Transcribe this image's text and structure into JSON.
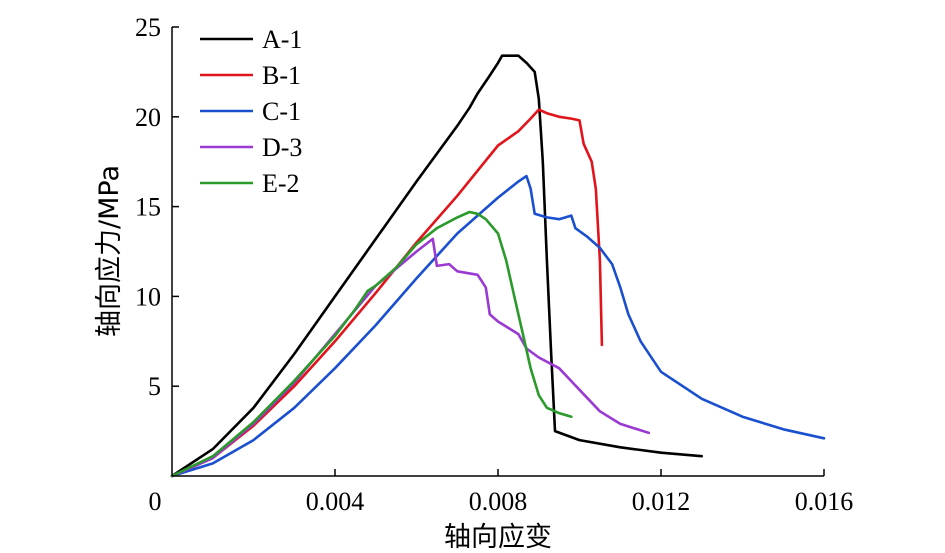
{
  "chart_data": {
    "type": "line",
    "title": "",
    "xlabel": "轴向应变",
    "ylabel": "轴向应力/MPa",
    "xlim": [
      0,
      0.016
    ],
    "ylim": [
      0,
      25
    ],
    "xticks": [
      {
        "value": 0,
        "label": "0"
      },
      {
        "value": 0.004,
        "label": "0.004"
      },
      {
        "value": 0.008,
        "label": "0.008"
      },
      {
        "value": 0.012,
        "label": "0.012"
      },
      {
        "value": 0.016,
        "label": "0.016"
      }
    ],
    "yticks": [
      {
        "value": 5,
        "label": "5"
      },
      {
        "value": 10,
        "label": "10"
      },
      {
        "value": 15,
        "label": "15"
      },
      {
        "value": 20,
        "label": "20"
      },
      {
        "value": 25,
        "label": "25"
      }
    ],
    "grid": false,
    "legend_position": "top-left",
    "series": [
      {
        "name": "A-1",
        "color": "#000000",
        "points": [
          [
            0,
            0
          ],
          [
            0.001,
            1.5
          ],
          [
            0.002,
            3.8
          ],
          [
            0.003,
            6.8
          ],
          [
            0.004,
            10
          ],
          [
            0.005,
            13.2
          ],
          [
            0.006,
            16.4
          ],
          [
            0.007,
            19.5
          ],
          [
            0.0073,
            20.5
          ],
          [
            0.0075,
            21.3
          ],
          [
            0.0078,
            22.3
          ],
          [
            0.008,
            23.0
          ],
          [
            0.0081,
            23.4
          ],
          [
            0.0083,
            23.4
          ],
          [
            0.0085,
            23.4
          ],
          [
            0.0087,
            23.0
          ],
          [
            0.0089,
            22.5
          ],
          [
            0.009,
            21.0
          ],
          [
            0.0091,
            17.5
          ],
          [
            0.0092,
            12.0
          ],
          [
            0.0093,
            7.0
          ],
          [
            0.0094,
            2.5
          ],
          [
            0.01,
            2.0
          ],
          [
            0.011,
            1.6
          ],
          [
            0.012,
            1.3
          ],
          [
            0.013,
            1.1
          ]
        ]
      },
      {
        "name": "B-1",
        "color": "#e0141a",
        "points": [
          [
            0,
            0
          ],
          [
            0.001,
            1.0
          ],
          [
            0.002,
            2.8
          ],
          [
            0.003,
            5.0
          ],
          [
            0.004,
            7.5
          ],
          [
            0.005,
            10.2
          ],
          [
            0.006,
            13.0
          ],
          [
            0.007,
            15.6
          ],
          [
            0.0075,
            17.0
          ],
          [
            0.008,
            18.4
          ],
          [
            0.0085,
            19.2
          ],
          [
            0.0088,
            19.9
          ],
          [
            0.009,
            20.4
          ],
          [
            0.0092,
            20.2
          ],
          [
            0.0095,
            20.0
          ],
          [
            0.0098,
            19.9
          ],
          [
            0.01,
            19.8
          ],
          [
            0.0101,
            18.5
          ],
          [
            0.0103,
            17.5
          ],
          [
            0.0104,
            16.0
          ],
          [
            0.0105,
            12.0
          ],
          [
            0.01055,
            7.3
          ]
        ]
      },
      {
        "name": "C-1",
        "color": "#1a50d0",
        "points": [
          [
            0,
            0
          ],
          [
            0.001,
            0.7
          ],
          [
            0.002,
            2.0
          ],
          [
            0.003,
            3.8
          ],
          [
            0.004,
            6.0
          ],
          [
            0.005,
            8.4
          ],
          [
            0.006,
            11.0
          ],
          [
            0.007,
            13.5
          ],
          [
            0.008,
            15.5
          ],
          [
            0.0085,
            16.4
          ],
          [
            0.0087,
            16.7
          ],
          [
            0.0088,
            16.0
          ],
          [
            0.0089,
            14.6
          ],
          [
            0.0092,
            14.4
          ],
          [
            0.0095,
            14.3
          ],
          [
            0.0098,
            14.5
          ],
          [
            0.0099,
            13.8
          ],
          [
            0.0102,
            13.3
          ],
          [
            0.0105,
            12.7
          ],
          [
            0.0108,
            11.8
          ],
          [
            0.011,
            10.5
          ],
          [
            0.0112,
            9.0
          ],
          [
            0.0115,
            7.5
          ],
          [
            0.012,
            5.8
          ],
          [
            0.013,
            4.3
          ],
          [
            0.014,
            3.3
          ],
          [
            0.015,
            2.6
          ],
          [
            0.016,
            2.1
          ]
        ]
      },
      {
        "name": "D-3",
        "color": "#9a3ad2",
        "points": [
          [
            0,
            0
          ],
          [
            0.001,
            1.0
          ],
          [
            0.002,
            2.9
          ],
          [
            0.003,
            5.2
          ],
          [
            0.004,
            7.9
          ],
          [
            0.005,
            10.6
          ],
          [
            0.006,
            12.5
          ],
          [
            0.0064,
            13.2
          ],
          [
            0.0065,
            11.7
          ],
          [
            0.0068,
            11.8
          ],
          [
            0.007,
            11.4
          ],
          [
            0.0075,
            11.2
          ],
          [
            0.0077,
            10.5
          ],
          [
            0.0078,
            9.0
          ],
          [
            0.008,
            8.6
          ],
          [
            0.0085,
            7.9
          ],
          [
            0.0087,
            7.1
          ],
          [
            0.009,
            6.6
          ],
          [
            0.0095,
            6.0
          ],
          [
            0.01,
            4.8
          ],
          [
            0.0105,
            3.6
          ],
          [
            0.011,
            2.9
          ],
          [
            0.0117,
            2.4
          ]
        ]
      },
      {
        "name": "E-2",
        "color": "#2a9a2a",
        "points": [
          [
            0,
            0
          ],
          [
            0.001,
            1.1
          ],
          [
            0.002,
            3.0
          ],
          [
            0.003,
            5.3
          ],
          [
            0.004,
            7.8
          ],
          [
            0.0045,
            9.3
          ],
          [
            0.0048,
            10.3
          ],
          [
            0.005,
            10.6
          ],
          [
            0.0055,
            11.6
          ],
          [
            0.006,
            12.9
          ],
          [
            0.0065,
            13.8
          ],
          [
            0.007,
            14.4
          ],
          [
            0.0073,
            14.7
          ],
          [
            0.0075,
            14.6
          ],
          [
            0.0077,
            14.3
          ],
          [
            0.008,
            13.5
          ],
          [
            0.0082,
            12.0
          ],
          [
            0.0084,
            10.0
          ],
          [
            0.0086,
            8.0
          ],
          [
            0.0088,
            6.0
          ],
          [
            0.009,
            4.5
          ],
          [
            0.0092,
            3.8
          ],
          [
            0.0095,
            3.5
          ],
          [
            0.0098,
            3.3
          ]
        ]
      }
    ]
  }
}
